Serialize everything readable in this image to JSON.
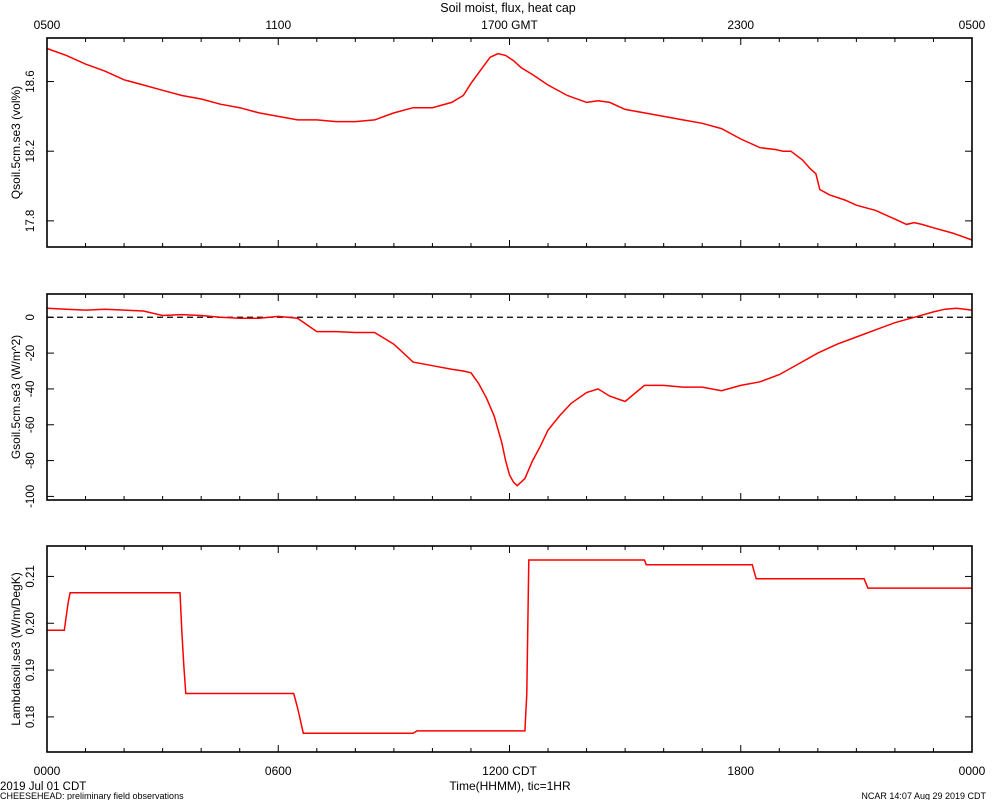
{
  "chart_data": {
    "type": "line",
    "title": "Soil moist, flux, heat cap",
    "top_axis": {
      "tick_labels": [
        "0500",
        "1100",
        "1700 GMT",
        "2300",
        "0500"
      ],
      "tick_hours": [
        0,
        6,
        12,
        18,
        24
      ]
    },
    "bottom_axis": {
      "xlabel": "Time(HHMM), tic=1HR",
      "tick_labels": [
        "0000",
        "0600",
        "1200 CDT",
        "1800",
        "0000"
      ],
      "tick_hours": [
        0,
        6,
        12,
        18,
        24
      ],
      "date_label": "2019 Jul 01 CDT"
    },
    "footer_left": "CHEESEHEAD: preliminary field observations",
    "footer_right": "NCAR 14:07 Aug 29 2019 CDT",
    "panels": [
      {
        "ylabel": "Qsoil.5cm.se3 (vol%)",
        "ylim": [
          17.65,
          18.85
        ],
        "yticks": [
          17.8,
          18.2,
          18.6
        ],
        "ytick_labels": [
          "17.8",
          "18.2",
          "18.6"
        ],
        "zero_line": false,
        "series": [
          {
            "x": [
              0,
              0.5,
              1,
              1.5,
              2,
              2.5,
              3,
              3.5,
              4,
              4.5,
              5,
              5.5,
              6,
              6.5,
              7,
              7.5,
              8,
              8.5,
              9,
              9.5,
              10,
              10.5,
              10.8,
              11,
              11.3,
              11.5,
              11.7,
              11.9,
              12.1,
              12.3,
              12.6,
              13,
              13.5,
              14,
              14.3,
              14.6,
              15,
              15.5,
              16,
              16.5,
              17,
              17.5,
              18,
              18.5,
              18.9,
              19.1,
              19.3,
              19.6,
              19.8,
              19.95,
              20.05,
              20.3,
              20.7,
              21,
              21.5,
              22,
              22.3,
              22.5,
              22.7,
              23,
              23.5,
              24
            ],
            "y": [
              18.79,
              18.75,
              18.7,
              18.66,
              18.61,
              18.58,
              18.55,
              18.52,
              18.5,
              18.47,
              18.45,
              18.42,
              18.4,
              18.38,
              18.38,
              18.37,
              18.37,
              18.38,
              18.42,
              18.45,
              18.45,
              18.48,
              18.52,
              18.59,
              18.68,
              18.74,
              18.76,
              18.75,
              18.72,
              18.68,
              18.64,
              18.58,
              18.52,
              18.48,
              18.49,
              18.48,
              18.44,
              18.42,
              18.4,
              18.38,
              18.36,
              18.33,
              18.27,
              18.22,
              18.21,
              18.2,
              18.2,
              18.15,
              18.1,
              18.07,
              17.98,
              17.95,
              17.92,
              17.89,
              17.86,
              17.81,
              17.78,
              17.79,
              17.78,
              17.76,
              17.73,
              17.69
            ]
          }
        ]
      },
      {
        "ylabel": "Gsoil.5cm.se3 (W/m^2)",
        "ylim": [
          -102,
          13
        ],
        "yticks": [
          -100,
          -80,
          -60,
          -40,
          -20,
          0
        ],
        "ytick_labels": [
          "-100",
          "-80",
          "-60",
          "-40",
          "-20",
          "0"
        ],
        "zero_line": true,
        "series": [
          {
            "x": [
              0,
              0.5,
              1,
              1.5,
              2,
              2.5,
              3,
              3.5,
              4,
              4.5,
              5,
              5.5,
              6,
              6.5,
              7,
              7.5,
              8,
              8.5,
              9,
              9.5,
              10,
              10.5,
              10.8,
              11,
              11.2,
              11.4,
              11.6,
              11.8,
              11.9,
              12.0,
              12.1,
              12.2,
              12.4,
              12.6,
              12.8,
              13,
              13.3,
              13.6,
              14,
              14.3,
              14.6,
              15,
              15.5,
              16,
              16.5,
              17,
              17.5,
              18,
              18.5,
              19,
              19.5,
              20,
              20.5,
              21,
              21.5,
              22,
              22.5,
              23,
              23.3,
              23.6,
              24
            ],
            "y": [
              5,
              4.5,
              4,
              4.5,
              4,
              3.5,
              1,
              1.5,
              1,
              0,
              -0.5,
              -0.5,
              0.5,
              -0.5,
              -8,
              -8,
              -8.5,
              -8.5,
              -15,
              -25,
              -27,
              -29,
              -30,
              -31,
              -37,
              -45,
              -55,
              -70,
              -80,
              -88,
              -92,
              -94,
              -90,
              -80,
              -72,
              -63,
              -55,
              -48,
              -42,
              -40,
              -44,
              -47,
              -38,
              -38,
              -39,
              -39,
              -41,
              -38,
              -36,
              -32,
              -26,
              -20,
              -15,
              -11,
              -7,
              -3,
              0,
              3,
              4.5,
              5,
              4
            ]
          }
        ]
      },
      {
        "ylabel": "Lambdasoil.se3 (W/m/DegK)",
        "ylim": [
          0.1725,
          0.2165
        ],
        "yticks": [
          0.18,
          0.19,
          0.2,
          0.21
        ],
        "ytick_labels": [
          "0.18",
          "0.19",
          "0.20",
          "0.21"
        ],
        "zero_line": false,
        "series": [
          {
            "x": [
              0,
              0.45,
              0.55,
              0.6,
              0.7,
              3.45,
              3.5,
              3.55,
              3.6,
              4.0,
              6.4,
              6.5,
              6.65,
              9.5,
              9.6,
              9.7,
              12.4,
              12.45,
              12.5,
              12.6,
              15.5,
              15.55,
              15.6,
              18.3,
              18.35,
              18.4,
              18.5,
              21.2,
              21.3,
              21.4,
              24
            ],
            "y": [
              0.1985,
              0.1985,
              0.2045,
              0.2065,
              0.2065,
              0.2065,
              0.198,
              0.191,
              0.185,
              0.185,
              0.185,
              0.182,
              0.1765,
              0.1765,
              0.177,
              0.177,
              0.177,
              0.185,
              0.2135,
              0.2135,
              0.2135,
              0.2125,
              0.2125,
              0.2125,
              0.211,
              0.2095,
              0.2095,
              0.2095,
              0.2075,
              0.2075,
              0.2075
            ]
          }
        ]
      }
    ]
  }
}
